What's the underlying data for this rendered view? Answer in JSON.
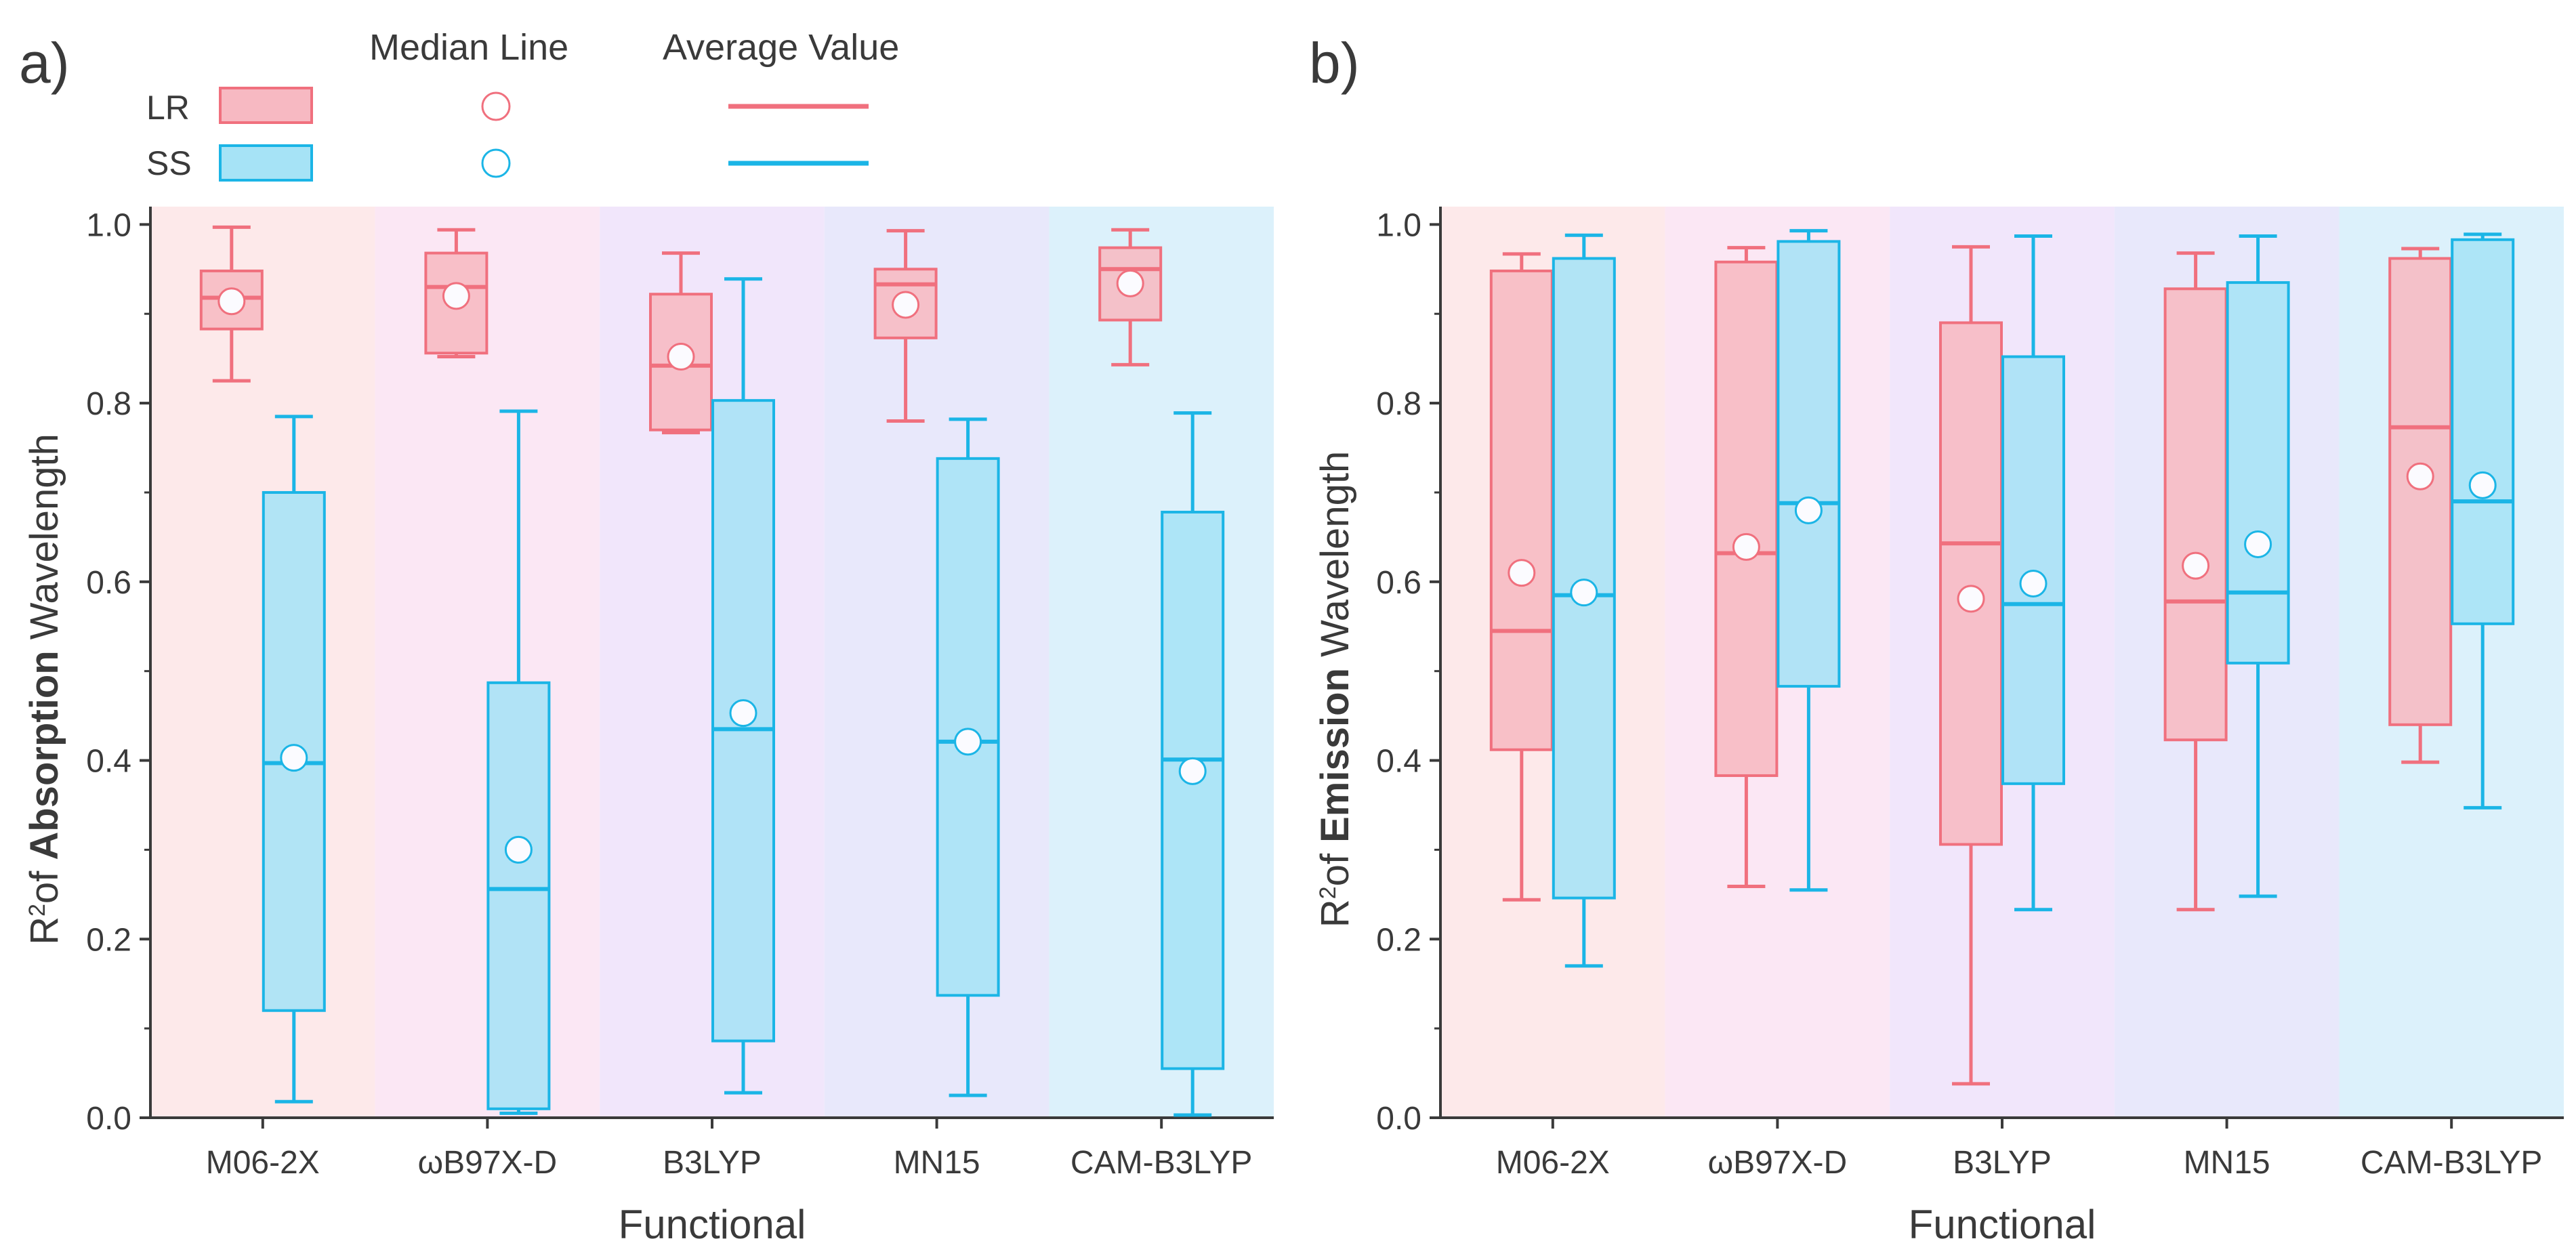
{
  "figure_labels": {
    "a": "a)",
    "b": "b)"
  },
  "legend": {
    "median_header": "Median Line",
    "average_header": "Average Value",
    "entries": [
      {
        "key": "LR",
        "label": "LR"
      },
      {
        "key": "SS",
        "label": "SS"
      }
    ]
  },
  "colors": {
    "lr_fill": "#f7b9c2",
    "lr_line": "#f0707e",
    "ss_fill": "#a6e3f6",
    "ss_line": "#1bb5e6",
    "bands": [
      "#fde9ea",
      "#fbe7f4",
      "#f1e6fb",
      "#e8e8fb",
      "#dcf1fb"
    ]
  },
  "chart_data": [
    {
      "type": "box",
      "panel": "a",
      "title": "",
      "xlabel": "Functional",
      "ylabel_prefix": "R",
      "ylabel_sup": "2",
      "ylabel_of": "of ",
      "ylabel_bold": "Absorption",
      "ylabel_suffix": " Wavelength",
      "ylim": [
        0,
        1.0
      ],
      "yticks": [
        "0.0",
        "0.2",
        "0.4",
        "0.6",
        "0.8",
        "1.0"
      ],
      "categories": [
        "M06-2X",
        "ωB97X-D",
        "B3LYP",
        "MN15",
        "CAM-B3LYP"
      ],
      "series": [
        {
          "name": "LR",
          "boxes": [
            {
              "min": 0.825,
              "q1": 0.883,
              "median": 0.918,
              "q3": 0.948,
              "max": 0.997,
              "mean": 0.914
            },
            {
              "min": 0.852,
              "q1": 0.856,
              "median": 0.93,
              "q3": 0.968,
              "max": 0.994,
              "mean": 0.92
            },
            {
              "min": 0.767,
              "q1": 0.77,
              "median": 0.842,
              "q3": 0.922,
              "max": 0.968,
              "mean": 0.852
            },
            {
              "min": 0.78,
              "q1": 0.873,
              "median": 0.933,
              "q3": 0.95,
              "max": 0.993,
              "mean": 0.91
            },
            {
              "min": 0.843,
              "q1": 0.893,
              "median": 0.95,
              "q3": 0.974,
              "max": 0.994,
              "mean": 0.934
            }
          ]
        },
        {
          "name": "SS",
          "boxes": [
            {
              "min": 0.018,
              "q1": 0.12,
              "median": 0.397,
              "q3": 0.7,
              "max": 0.785,
              "mean": 0.403
            },
            {
              "min": 0.005,
              "q1": 0.01,
              "median": 0.256,
              "q3": 0.487,
              "max": 0.791,
              "mean": 0.3
            },
            {
              "min": 0.028,
              "q1": 0.086,
              "median": 0.435,
              "q3": 0.803,
              "max": 0.939,
              "mean": 0.453
            },
            {
              "min": 0.025,
              "q1": 0.137,
              "median": 0.421,
              "q3": 0.738,
              "max": 0.782,
              "mean": 0.421
            },
            {
              "min": 0.003,
              "q1": 0.055,
              "median": 0.401,
              "q3": 0.678,
              "max": 0.789,
              "mean": 0.388
            }
          ]
        }
      ]
    },
    {
      "type": "box",
      "panel": "b",
      "title": "",
      "xlabel": "Functional",
      "ylabel_prefix": "R",
      "ylabel_sup": "2",
      "ylabel_of": "of ",
      "ylabel_bold": "Emission",
      "ylabel_suffix": " Wavelength",
      "ylim": [
        0,
        1.0
      ],
      "yticks": [
        "0.0",
        "0.2",
        "0.4",
        "0.6",
        "0.8",
        "1.0"
      ],
      "categories": [
        "M06-2X",
        "ωB97X-D",
        "B3LYP",
        "MN15",
        "CAM-B3LYP"
      ],
      "series": [
        {
          "name": "LR",
          "boxes": [
            {
              "min": 0.244,
              "q1": 0.412,
              "median": 0.545,
              "q3": 0.948,
              "max": 0.967,
              "mean": 0.61
            },
            {
              "min": 0.259,
              "q1": 0.383,
              "median": 0.632,
              "q3": 0.958,
              "max": 0.974,
              "mean": 0.639
            },
            {
              "min": 0.038,
              "q1": 0.306,
              "median": 0.643,
              "q3": 0.89,
              "max": 0.975,
              "mean": 0.581
            },
            {
              "min": 0.233,
              "q1": 0.423,
              "median": 0.578,
              "q3": 0.928,
              "max": 0.968,
              "mean": 0.618
            },
            {
              "min": 0.398,
              "q1": 0.44,
              "median": 0.773,
              "q3": 0.962,
              "max": 0.973,
              "mean": 0.718
            }
          ]
        },
        {
          "name": "SS",
          "boxes": [
            {
              "min": 0.17,
              "q1": 0.246,
              "median": 0.585,
              "q3": 0.962,
              "max": 0.988,
              "mean": 0.588
            },
            {
              "min": 0.255,
              "q1": 0.483,
              "median": 0.688,
              "q3": 0.981,
              "max": 0.993,
              "mean": 0.68
            },
            {
              "min": 0.233,
              "q1": 0.374,
              "median": 0.575,
              "q3": 0.852,
              "max": 0.987,
              "mean": 0.598
            },
            {
              "min": 0.248,
              "q1": 0.509,
              "median": 0.588,
              "q3": 0.935,
              "max": 0.987,
              "mean": 0.642
            },
            {
              "min": 0.347,
              "q1": 0.553,
              "median": 0.69,
              "q3": 0.983,
              "max": 0.989,
              "mean": 0.708
            }
          ]
        }
      ]
    }
  ]
}
